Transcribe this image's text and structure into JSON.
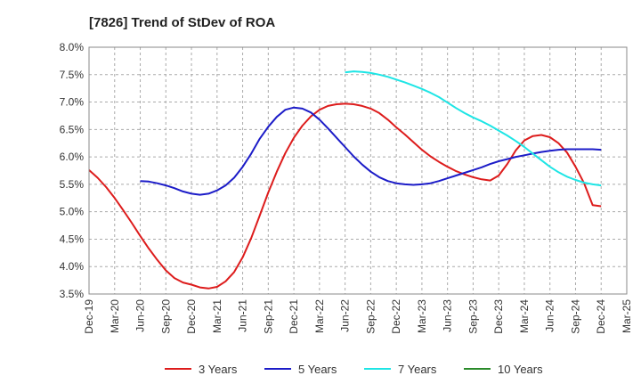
{
  "chart_data": {
    "type": "line",
    "title": "[7826]  Trend of StDev of ROA",
    "xlabel": "",
    "ylabel": "",
    "x_ticks": [
      "Dec-19",
      "Mar-20",
      "Jun-20",
      "Sep-20",
      "Dec-20",
      "Mar-21",
      "Jun-21",
      "Sep-21",
      "Dec-21",
      "Mar-22",
      "Jun-22",
      "Sep-22",
      "Dec-22",
      "Mar-23",
      "Jun-23",
      "Sep-23",
      "Dec-23",
      "Mar-24",
      "Jun-24",
      "Sep-24",
      "Dec-24",
      "Mar-25"
    ],
    "y_ticks": [
      "3.5%",
      "4.0%",
      "4.5%",
      "5.0%",
      "5.5%",
      "6.0%",
      "6.5%",
      "7.0%",
      "7.5%",
      "8.0%"
    ],
    "y_tick_values": [
      3.5,
      4.0,
      4.5,
      5.0,
      5.5,
      6.0,
      6.5,
      7.0,
      7.5,
      8.0
    ],
    "ylim": [
      3.5,
      8.0
    ],
    "xlim_months": [
      0,
      63
    ],
    "grid": true,
    "legend_position": "bottom",
    "series": [
      {
        "name": "3 Years",
        "color": "#dd1c1c",
        "x_months": [
          0,
          1,
          2,
          3,
          4,
          5,
          6,
          7,
          8,
          9,
          10,
          11,
          12,
          13,
          14,
          15,
          16,
          17,
          18,
          19,
          20,
          21,
          22,
          23,
          24,
          25,
          26,
          27,
          28,
          29,
          30,
          31,
          32,
          33,
          34,
          35,
          36,
          37,
          38,
          39,
          40,
          41,
          42,
          43,
          44,
          45,
          46,
          47,
          48,
          49,
          50,
          51,
          52,
          53,
          54,
          55,
          56,
          57,
          58,
          59,
          60
        ],
        "values": [
          5.76,
          5.62,
          5.45,
          5.25,
          5.03,
          4.8,
          4.56,
          4.33,
          4.12,
          3.93,
          3.79,
          3.71,
          3.67,
          3.62,
          3.6,
          3.63,
          3.73,
          3.9,
          4.17,
          4.52,
          4.93,
          5.35,
          5.73,
          6.07,
          6.35,
          6.57,
          6.74,
          6.86,
          6.93,
          6.96,
          6.97,
          6.96,
          6.93,
          6.88,
          6.8,
          6.68,
          6.54,
          6.41,
          6.27,
          6.13,
          6.01,
          5.91,
          5.82,
          5.74,
          5.68,
          5.63,
          5.59,
          5.57,
          5.66,
          5.87,
          6.12,
          6.3,
          6.38,
          6.4,
          6.36,
          6.25,
          6.08,
          5.82,
          5.52,
          5.12,
          5.1
        ]
      },
      {
        "name": "5 Years",
        "color": "#1c1cc8",
        "x_months": [
          6,
          7,
          8,
          9,
          10,
          11,
          12,
          13,
          14,
          15,
          16,
          17,
          18,
          19,
          20,
          21,
          22,
          23,
          24,
          25,
          26,
          27,
          28,
          29,
          30,
          31,
          32,
          33,
          34,
          35,
          36,
          37,
          38,
          39,
          40,
          41,
          42,
          43,
          44,
          45,
          46,
          47,
          48,
          49,
          50,
          51,
          52,
          53,
          54,
          55,
          56,
          57,
          58,
          59,
          60
        ],
        "values": [
          5.56,
          5.55,
          5.52,
          5.48,
          5.43,
          5.37,
          5.33,
          5.31,
          5.33,
          5.39,
          5.48,
          5.62,
          5.82,
          6.06,
          6.33,
          6.55,
          6.73,
          6.86,
          6.9,
          6.88,
          6.81,
          6.68,
          6.52,
          6.35,
          6.18,
          6.01,
          5.86,
          5.73,
          5.63,
          5.56,
          5.52,
          5.5,
          5.49,
          5.5,
          5.52,
          5.56,
          5.61,
          5.66,
          5.71,
          5.76,
          5.81,
          5.87,
          5.92,
          5.96,
          6.0,
          6.03,
          6.06,
          6.09,
          6.11,
          6.13,
          6.14,
          6.14,
          6.14,
          6.14,
          6.13
        ]
      },
      {
        "name": "7 Years",
        "color": "#1ee5e5",
        "x_months": [
          30,
          31,
          32,
          33,
          34,
          35,
          36,
          37,
          38,
          39,
          40,
          41,
          42,
          43,
          44,
          45,
          46,
          47,
          48,
          49,
          50,
          51,
          52,
          53,
          54,
          55,
          56,
          57,
          58,
          59,
          60
        ],
        "values": [
          7.54,
          7.56,
          7.55,
          7.53,
          7.5,
          7.46,
          7.41,
          7.36,
          7.3,
          7.24,
          7.17,
          7.09,
          6.99,
          6.89,
          6.8,
          6.72,
          6.65,
          6.57,
          6.48,
          6.39,
          6.29,
          6.18,
          6.06,
          5.94,
          5.82,
          5.72,
          5.64,
          5.58,
          5.53,
          5.5,
          5.48
        ]
      },
      {
        "name": "10 Years",
        "color": "#2a8a2a",
        "x_months": [],
        "values": []
      }
    ]
  }
}
